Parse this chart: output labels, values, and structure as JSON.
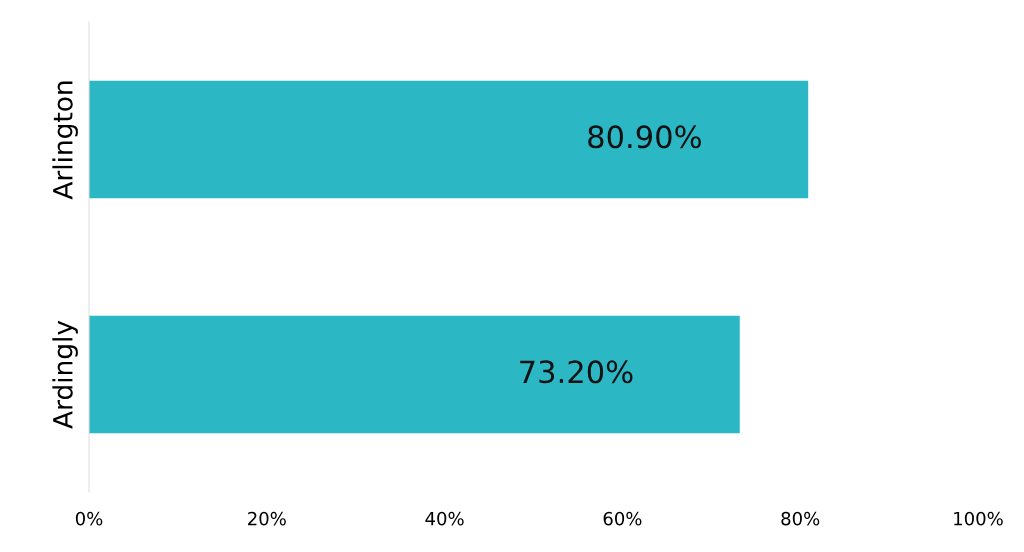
{
  "chart_data": {
    "type": "bar",
    "orientation": "horizontal",
    "categories": [
      "Arlington",
      "Ardingly"
    ],
    "values": [
      80.9,
      73.2
    ],
    "color": "#2cb7c5",
    "value_labels": [
      "80.90%",
      "73.20%"
    ],
    "xlim": [
      0,
      100
    ],
    "xticks": [
      {
        "value": 0,
        "label": "0%"
      },
      {
        "value": 20,
        "label": "20%"
      },
      {
        "value": 40,
        "label": "40%"
      },
      {
        "value": 60,
        "label": "60%"
      },
      {
        "value": 80,
        "label": "80%"
      },
      {
        "value": 100,
        "label": "100%"
      }
    ],
    "grid": false,
    "legend": false
  }
}
